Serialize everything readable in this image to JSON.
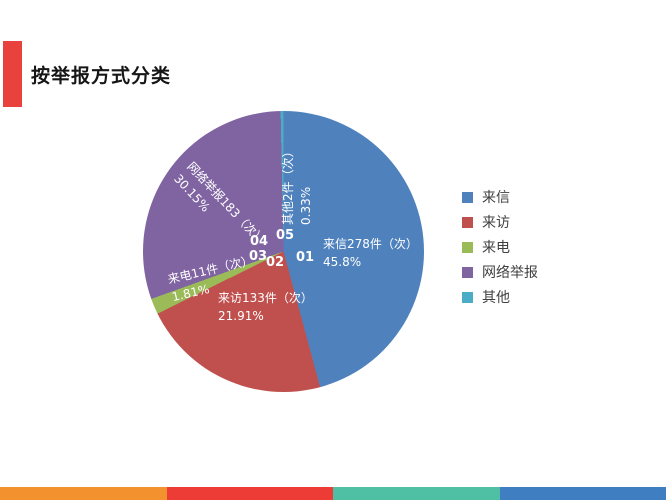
{
  "page": {
    "title": "按举报方式分类"
  },
  "accent": {
    "title_bar_red": "#E9423D"
  },
  "chart_data": {
    "type": "pie",
    "title": "按举报方式分类",
    "direction": "clockwise",
    "start_angle_deg": 0,
    "total": 607,
    "legend_position": "right",
    "slices": [
      {
        "id": "01",
        "name": "来信",
        "value": 278,
        "percent": 45.8,
        "label": "来信278件（次）",
        "percent_label": "45.8%",
        "color": "#4F81BD"
      },
      {
        "id": "02",
        "name": "来访",
        "value": 133,
        "percent": 21.91,
        "label": "来访133件（次）",
        "percent_label": "21.91%",
        "color": "#C0504D"
      },
      {
        "id": "03",
        "name": "来电",
        "value": 11,
        "percent": 1.81,
        "label": "来电11件（次）",
        "percent_label": "1.81%",
        "color": "#9BBB59"
      },
      {
        "id": "04",
        "name": "网络举报",
        "value": 183,
        "percent": 30.15,
        "label": "网络举报183（次）",
        "percent_label": "30.15%",
        "color": "#8064A2"
      },
      {
        "id": "05",
        "name": "其他",
        "value": 2,
        "percent": 0.33,
        "label": "其他2件（次）",
        "percent_label": "0.33%",
        "color": "#4BACC6"
      }
    ]
  },
  "legend": {
    "items": [
      {
        "label": "来信",
        "color": "#4F81BD"
      },
      {
        "label": "来访",
        "color": "#C0504D"
      },
      {
        "label": "来电",
        "color": "#9BBB59"
      },
      {
        "label": "网络举报",
        "color": "#8064A2"
      },
      {
        "label": "其他",
        "color": "#4BACC6"
      }
    ]
  },
  "footer": {
    "colors": [
      "#F2912D",
      "#ED3B35",
      "#50C0A5",
      "#3E7EC1"
    ]
  }
}
